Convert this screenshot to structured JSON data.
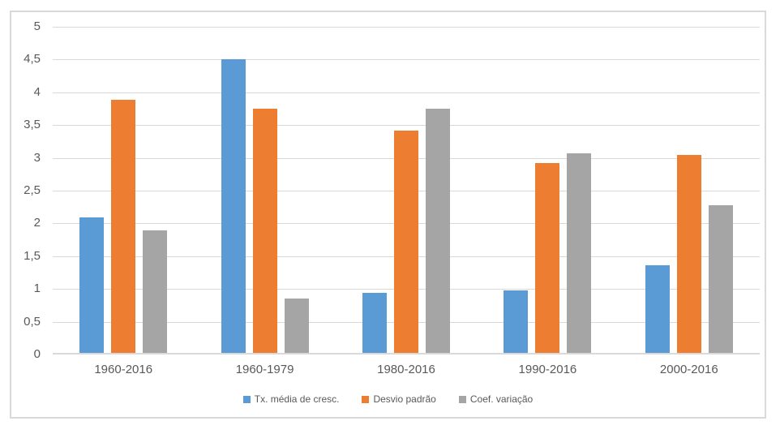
{
  "chart_data": {
    "type": "bar",
    "categories": [
      "1960-2016",
      "1960-1979",
      "1980-2016",
      "1990-2016",
      "2000-2016"
    ],
    "series": [
      {
        "name": "Tx. média de cresc.",
        "color": "#5B9BD5",
        "values": [
          2.07,
          4.48,
          0.91,
          0.95,
          1.34
        ]
      },
      {
        "name": "Desvio padrão",
        "color": "#ED7D31",
        "values": [
          3.86,
          3.73,
          3.39,
          2.9,
          3.02
        ]
      },
      {
        "name": "Coef. variação",
        "color": "#A5A5A5",
        "values": [
          1.87,
          0.83,
          3.72,
          3.05,
          2.25
        ]
      }
    ],
    "title": "",
    "xlabel": "",
    "ylabel": "",
    "ylim": [
      0,
      5
    ],
    "ytick_step": 0.5,
    "ytick_labels": [
      "0",
      "0,5",
      "1",
      "1,5",
      "2",
      "2,5",
      "3",
      "3,5",
      "4",
      "4,5",
      "5"
    ],
    "grid": true,
    "legend_position": "bottom"
  },
  "colors": {
    "gridline": "#D9D9D9",
    "frame_border": "#D9D9D9",
    "axis_text": "#595959",
    "background": "#FFFFFF"
  }
}
